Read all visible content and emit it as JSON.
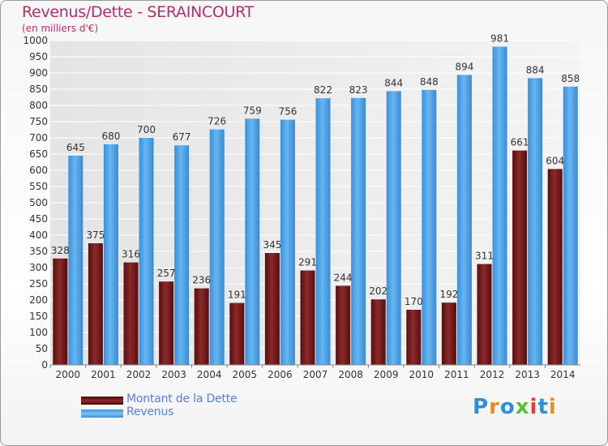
{
  "header": {
    "title": "Revenus/Dette - SERAINCOURT",
    "subtitle": "(en milliers d'€)"
  },
  "legend": {
    "items": [
      {
        "label": "Montant de la Dette",
        "color": "#7a1a1a"
      },
      {
        "label": "Revenus",
        "color": "#4a9ee6"
      }
    ]
  },
  "logo": {
    "text": "Proxiti",
    "letters": [
      {
        "ch": "P",
        "color": "#2f8fd8"
      },
      {
        "ch": "r",
        "color": "#f08a1c"
      },
      {
        "ch": "o",
        "color": "#2f8fd8"
      },
      {
        "ch": "x",
        "color": "#5bbf3a"
      },
      {
        "ch": "i",
        "color": "#e63b2e"
      },
      {
        "ch": "t",
        "color": "#2f8fd8"
      },
      {
        "ch": "i",
        "color": "#f08a1c"
      }
    ]
  },
  "chart_data": {
    "type": "bar",
    "title": "Revenus/Dette - SERAINCOURT",
    "subtitle": "(en milliers d'€)",
    "categories": [
      "2000",
      "2001",
      "2002",
      "2003",
      "2004",
      "2005",
      "2006",
      "2007",
      "2008",
      "2009",
      "2010",
      "2011",
      "2012",
      "2013",
      "2014"
    ],
    "series": [
      {
        "name": "Montant de la Dette",
        "color": "#7a1a1a",
        "values": [
          328,
          375,
          316,
          257,
          236,
          191,
          345,
          291,
          244,
          202,
          170,
          192,
          311,
          661,
          604
        ]
      },
      {
        "name": "Revenus",
        "color": "#4a9ee6",
        "values": [
          645,
          680,
          700,
          677,
          726,
          759,
          756,
          822,
          823,
          844,
          848,
          894,
          981,
          884,
          858
        ]
      }
    ],
    "ylim": [
      0,
      1000
    ],
    "ytick_step": 50,
    "grid": true,
    "legend_position": "bottom-left"
  }
}
